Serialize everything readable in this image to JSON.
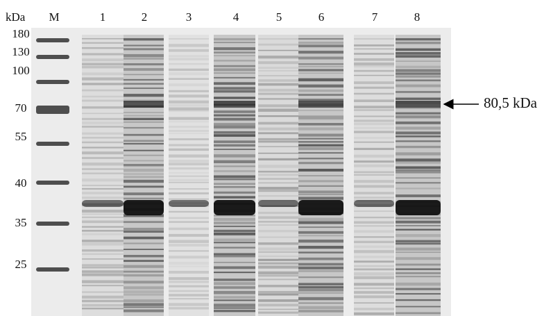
{
  "figure": {
    "unit_label": "kDa",
    "lanes": [
      "M",
      "1",
      "2",
      "3",
      "4",
      "5",
      "6",
      "7",
      "8"
    ],
    "marker_sizes": [
      "180",
      "130",
      "100",
      "70",
      "55",
      "40",
      "35",
      "25"
    ],
    "annotation": "80,5 kDa"
  }
}
